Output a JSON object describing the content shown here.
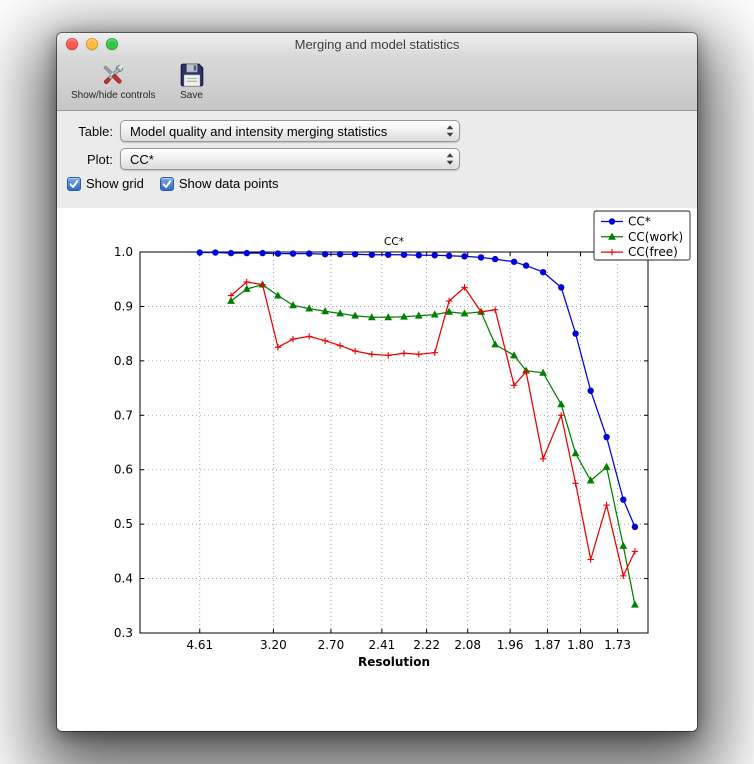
{
  "window": {
    "title": "Merging and model statistics"
  },
  "toolbar": {
    "items": [
      {
        "id": "show-hide-controls",
        "label": "Show/hide controls",
        "icon": "tools-icon"
      },
      {
        "id": "save",
        "label": "Save",
        "icon": "save-icon"
      }
    ]
  },
  "controls": {
    "table": {
      "label": "Table:",
      "value": "Model quality and intensity merging statistics"
    },
    "plot": {
      "label": "Plot:",
      "value": "CC*"
    },
    "show_grid": {
      "label": "Show grid",
      "checked": true
    },
    "show_data_points": {
      "label": "Show data points",
      "checked": true
    }
  },
  "colors": {
    "traffic_red": "#fc5753",
    "traffic_yellow": "#fdbc40",
    "traffic_green": "#33c748",
    "checkbox_blue": "#2f6bcf",
    "series_cc_star": "#0000dd",
    "series_cc_work": "#008000",
    "series_cc_free": "#ee0000"
  },
  "chart_data": {
    "type": "line",
    "title": "CC*",
    "xlabel": "Resolution",
    "ylabel": "",
    "grid": true,
    "show_data_points": true,
    "ylim": [
      0.3,
      1.0
    ],
    "yticks": [
      0.3,
      0.4,
      0.5,
      0.6,
      0.7,
      0.8,
      0.9,
      1.0
    ],
    "ytick_labels": [
      "0.3",
      "0.4",
      "0.5",
      "0.6",
      "0.7",
      "0.8",
      "0.9",
      "1.0"
    ],
    "x_axis_scale": "inverse_d_squared",
    "xlim_inv_d2": [
      0.006,
      0.355
    ],
    "xtick_labels": [
      "4.61",
      "3.20",
      "2.70",
      "2.41",
      "2.22",
      "2.08",
      "1.96",
      "1.87",
      "1.80",
      "1.73"
    ],
    "xtick_d": [
      4.61,
      3.2,
      2.7,
      2.41,
      2.22,
      2.08,
      1.96,
      1.87,
      1.8,
      1.73
    ],
    "x_d": [
      4.61,
      4.16,
      3.82,
      3.55,
      3.33,
      3.15,
      3.0,
      2.86,
      2.74,
      2.64,
      2.55,
      2.46,
      2.38,
      2.31,
      2.25,
      2.19,
      2.14,
      2.09,
      2.04,
      2.0,
      1.95,
      1.92,
      1.88,
      1.84,
      1.81,
      1.78,
      1.75,
      1.72,
      1.7
    ],
    "legend": {
      "position": "upper right",
      "entries": [
        "CC*",
        "CC(work)",
        "CC(free)"
      ]
    },
    "series": [
      {
        "name": "CC*",
        "color": "#0000dd",
        "marker": "circle",
        "values": [
          0.999,
          0.999,
          0.998,
          0.998,
          0.998,
          0.997,
          0.997,
          0.997,
          0.996,
          0.996,
          0.996,
          0.995,
          0.995,
          0.995,
          0.994,
          0.994,
          0.993,
          0.992,
          0.99,
          0.987,
          0.982,
          0.975,
          0.963,
          0.935,
          0.85,
          0.745,
          0.66,
          0.545,
          0.495
        ]
      },
      {
        "name": "CC(work)",
        "color": "#008000",
        "marker": "triangle",
        "values": [
          null,
          null,
          0.91,
          0.932,
          0.94,
          0.92,
          0.902,
          0.896,
          0.891,
          0.887,
          0.883,
          0.88,
          0.88,
          0.881,
          0.883,
          0.885,
          0.89,
          0.887,
          0.89,
          0.83,
          0.81,
          0.782,
          0.778,
          0.72,
          0.63,
          0.58,
          0.605,
          0.46,
          0.352
        ]
      },
      {
        "name": "CC(free)",
        "color": "#ee0000",
        "marker": "plus",
        "values": [
          null,
          null,
          0.92,
          0.945,
          0.94,
          0.825,
          0.84,
          0.845,
          0.837,
          0.828,
          0.818,
          0.812,
          0.81,
          0.814,
          0.812,
          0.815,
          0.91,
          0.935,
          0.89,
          0.894,
          0.755,
          0.78,
          0.62,
          0.7,
          0.575,
          0.435,
          0.535,
          0.405,
          0.45
        ]
      }
    ]
  }
}
